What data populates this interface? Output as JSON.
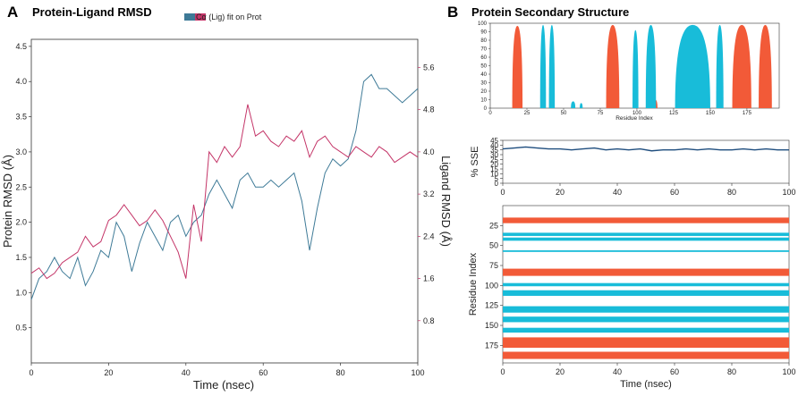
{
  "colors": {
    "protein": "#3e7a97",
    "ligand": "#c43568",
    "helix": "#f25a38",
    "strand": "#18bcd9",
    "sse_line": "#1e4d7e"
  },
  "panel_a": {
    "letter": "A",
    "title": "Protein-Ligand RMSD"
  },
  "panel_b": {
    "letter": "B",
    "title": "Protein Secondary Structure"
  },
  "chart_data": [
    {
      "id": "rmsd",
      "type": "line",
      "title": "Protein-Ligand RMSD",
      "xlabel": "Time (nsec)",
      "ylabel": "Protein RMSD (Å)",
      "ylabel_right": "Ligand RMSD (Å)",
      "xlim": [
        0,
        100
      ],
      "ylim": [
        0,
        4.6
      ],
      "ylim_right": [
        0,
        6.133
      ],
      "xticks": [
        "0",
        "20",
        "40",
        "60",
        "80",
        "100"
      ],
      "yticks": [
        "0.5",
        "1.0",
        "1.5",
        "2.0",
        "2.5",
        "3.0",
        "3.5",
        "4.0",
        "4.5"
      ],
      "yticks_right": [
        "0.8",
        "1.6",
        "2.4",
        "3.2",
        "4.0",
        "4.8",
        "5.6"
      ],
      "legend": [
        "Cα",
        "(Lig) fit on Prot"
      ],
      "legend_text": "Cα (Lig) fit on Prot",
      "series": [
        {
          "name": "Cα",
          "axis": "left",
          "x": [
            0,
            2,
            4,
            6,
            8,
            10,
            12,
            14,
            16,
            18,
            20,
            22,
            24,
            26,
            28,
            30,
            32,
            34,
            36,
            38,
            40,
            42,
            44,
            46,
            48,
            50,
            52,
            54,
            56,
            58,
            60,
            62,
            64,
            66,
            68,
            70,
            72,
            74,
            76,
            78,
            80,
            82,
            84,
            86,
            88,
            90,
            92,
            94,
            96,
            98,
            100
          ],
          "values": [
            0.9,
            1.2,
            1.3,
            1.5,
            1.3,
            1.2,
            1.5,
            1.1,
            1.3,
            1.6,
            1.5,
            2.0,
            1.8,
            1.3,
            1.7,
            2.0,
            1.8,
            1.6,
            2.0,
            2.1,
            1.8,
            2.0,
            2.1,
            2.4,
            2.6,
            2.4,
            2.2,
            2.6,
            2.7,
            2.5,
            2.5,
            2.6,
            2.5,
            2.6,
            2.7,
            2.3,
            1.6,
            2.2,
            2.7,
            2.9,
            2.8,
            2.9,
            3.3,
            4.0,
            4.1,
            3.9,
            3.9,
            3.8,
            3.7,
            3.8,
            3.9
          ]
        },
        {
          "name": "(Lig) fit on Prot",
          "axis": "right",
          "x": [
            0,
            2,
            4,
            6,
            8,
            10,
            12,
            14,
            16,
            18,
            20,
            22,
            24,
            26,
            28,
            30,
            32,
            34,
            36,
            38,
            40,
            42,
            44,
            46,
            48,
            50,
            52,
            54,
            56,
            58,
            60,
            62,
            64,
            66,
            68,
            70,
            72,
            74,
            76,
            78,
            80,
            82,
            84,
            86,
            88,
            90,
            92,
            94,
            96,
            98,
            100
          ],
          "values": [
            1.7,
            1.8,
            1.6,
            1.7,
            1.9,
            2.0,
            2.1,
            2.4,
            2.2,
            2.3,
            2.7,
            2.8,
            3.0,
            2.8,
            2.6,
            2.7,
            2.9,
            2.7,
            2.4,
            2.1,
            1.6,
            3.0,
            2.3,
            4.0,
            3.8,
            4.1,
            3.9,
            4.1,
            4.9,
            4.3,
            4.4,
            4.2,
            4.1,
            4.3,
            4.2,
            4.4,
            3.9,
            4.2,
            4.3,
            4.1,
            4.0,
            3.9,
            4.1,
            4.0,
            3.9,
            4.1,
            4.0,
            3.8,
            3.9,
            4.0,
            3.9
          ]
        }
      ]
    },
    {
      "id": "sse_residue",
      "type": "bar",
      "xlabel": "Residue Index",
      "ylabel": "",
      "xlim": [
        0,
        197
      ],
      "ylim": [
        0,
        100
      ],
      "xticks": [
        "0",
        "25",
        "50",
        "75",
        "100",
        "125",
        "150",
        "175"
      ],
      "yticks": [
        "0",
        "10",
        "20",
        "30",
        "40",
        "50",
        "60",
        "70",
        "80",
        "90",
        "100"
      ],
      "series": [
        {
          "name": "Helix",
          "regions": [
            [
              15,
              22,
              97
            ],
            [
              79,
              88,
              98
            ],
            [
              111,
              114,
              10
            ],
            [
              165,
              178,
              98
            ],
            [
              183,
              192,
              98
            ]
          ]
        },
        {
          "name": "Strand",
          "regions": [
            [
              34,
              38,
              98
            ],
            [
              40,
              44,
              98
            ],
            [
              55,
              58,
              8
            ],
            [
              61,
              63,
              6
            ],
            [
              97,
              101,
              92
            ],
            [
              106,
              113,
              98
            ],
            [
              126,
              150,
              98
            ],
            [
              154,
              159,
              98
            ]
          ]
        }
      ]
    },
    {
      "id": "sse_time",
      "type": "line",
      "xlabel": "",
      "ylabel": "% SSE",
      "xlim": [
        0,
        100
      ],
      "ylim": [
        0,
        45
      ],
      "xticks": [
        "0",
        "20",
        "40",
        "60",
        "80",
        "100"
      ],
      "yticks": [
        "0",
        "5",
        "10",
        "15",
        "20",
        "25",
        "30",
        "35",
        "40",
        "45"
      ],
      "series": [
        {
          "name": "% SSE",
          "x": [
            0,
            4,
            8,
            12,
            16,
            20,
            24,
            28,
            32,
            36,
            40,
            44,
            48,
            52,
            56,
            60,
            64,
            68,
            72,
            76,
            80,
            84,
            88,
            92,
            96,
            100
          ],
          "values": [
            36,
            37,
            38,
            37,
            36,
            36,
            35,
            36,
            37,
            35,
            36,
            35,
            36,
            34,
            35,
            35,
            36,
            35,
            36,
            35,
            35,
            36,
            35,
            36,
            35,
            35
          ]
        }
      ]
    },
    {
      "id": "sse_timeline",
      "type": "heatmap",
      "xlabel": "Time (nsec)",
      "ylabel": "Residue Index",
      "xlim": [
        0,
        100
      ],
      "ylim": [
        0,
        197
      ],
      "xticks": [
        "0",
        "20",
        "40",
        "60",
        "80",
        "100"
      ],
      "yticks": [
        "25",
        "50",
        "75",
        "100",
        "125",
        "150",
        "175"
      ],
      "series": [
        {
          "name": "Helix",
          "bands": [
            [
              15,
              22
            ],
            [
              79,
              88
            ],
            [
              165,
              178
            ],
            [
              183,
              192
            ]
          ]
        },
        {
          "name": "Strand",
          "bands": [
            [
              34,
              38
            ],
            [
              40,
              44
            ],
            [
              56,
              58
            ],
            [
              97,
              101
            ],
            [
              106,
              113
            ],
            [
              126,
              134
            ],
            [
              139,
              146
            ],
            [
              153,
              159
            ]
          ]
        }
      ]
    }
  ]
}
